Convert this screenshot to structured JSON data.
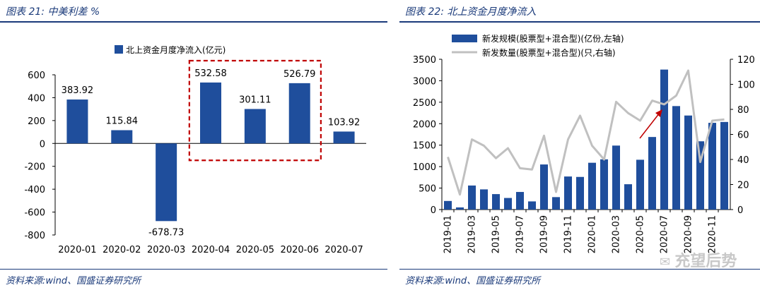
{
  "left": {
    "title": "图表 21:  中美利差 %",
    "source": "资料来源:wind、国盛证券研究所"
  },
  "right": {
    "title": "图表 22:  北上资金月度净流入",
    "source": "资料来源:wind、国盛证券研究所",
    "watermark": "充望后势"
  },
  "colors": {
    "bar": "#1f4e9c",
    "line": "#c0c0c0",
    "highlight": "#c00000",
    "axis": "#000000"
  },
  "chart_data": [
    {
      "type": "bar",
      "categories": [
        "2020-01",
        "2020-02",
        "2020-03",
        "2020-04",
        "2020-05",
        "2020-06",
        "2020-07"
      ],
      "series": [
        {
          "name": "北上资金月度净流入(亿元)",
          "values": [
            383.92,
            115.84,
            -678.73,
            532.58,
            301.11,
            526.79,
            103.92
          ]
        }
      ],
      "data_labels": [
        "383.92",
        "115.84",
        "-678.73",
        "532.58",
        "301.11",
        "526.79",
        "103.92"
      ],
      "ylim": [
        -800,
        600
      ],
      "yticks": [
        -800,
        -600,
        -400,
        -200,
        0,
        200,
        400,
        600
      ],
      "ytick_labels": [
        "-800",
        "-600",
        "-400",
        "-200",
        "0",
        "200",
        "400",
        "600"
      ],
      "legend_position": "top",
      "highlight_categories": [
        "2020-04",
        "2020-06"
      ]
    },
    {
      "type": "bar",
      "categories": [
        "2019-01",
        "2019-02",
        "2019-03",
        "2019-04",
        "2019-05",
        "2019-06",
        "2019-07",
        "2019-08",
        "2019-09",
        "2019-10",
        "2019-11",
        "2019-12",
        "2020-01",
        "2020-02",
        "2020-03",
        "2020-04",
        "2020-05",
        "2020-06",
        "2020-07",
        "2020-08",
        "2020-09",
        "2020-10",
        "2020-11",
        "2020-12"
      ],
      "xtick_labels": [
        "2019-01",
        "2019-03",
        "2019-05",
        "2019-07",
        "2019-09",
        "2019-11",
        "2020-01",
        "2020-03",
        "2020-05",
        "2020-07",
        "2020-09",
        "2020-11"
      ],
      "series": [
        {
          "name": "新发规模(股票型+混合型)(亿份,左轴)",
          "axis": "left",
          "kind": "bar",
          "values": [
            200,
            50,
            560,
            470,
            360,
            270,
            410,
            190,
            1050,
            290,
            770,
            760,
            1090,
            1170,
            1490,
            590,
            1160,
            1690,
            3260,
            2410,
            2190,
            1590,
            2020,
            2040
          ]
        },
        {
          "name": "新发数量(股票型+混合型)(只,右轴)",
          "axis": "right",
          "kind": "line",
          "values": [
            42,
            12,
            56,
            51,
            41,
            49,
            33,
            32,
            59,
            14,
            56,
            75,
            51,
            40,
            86,
            77,
            71,
            87,
            84,
            91,
            111,
            38,
            71,
            72
          ]
        }
      ],
      "ylim_left": [
        0,
        3500
      ],
      "yticks_left": [
        "0",
        "500",
        "1000",
        "1500",
        "2000",
        "2500",
        "3000",
        "3500"
      ],
      "ylim_right": [
        0,
        120
      ],
      "yticks_right": [
        "0",
        "20",
        "40",
        "60",
        "80",
        "100",
        "120"
      ],
      "legend_position": "top-left"
    }
  ]
}
